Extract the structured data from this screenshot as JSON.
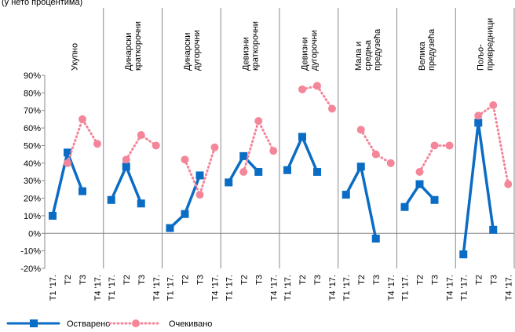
{
  "chart_data": {
    "type": "line",
    "subtitle": "(у нето процентима)",
    "categories": [
      "T1 '17.",
      "T2",
      "T3",
      "T4 '17."
    ],
    "panels": [
      [
        "Укупно"
      ],
      [
        "Динарски",
        "краткорочни"
      ],
      [
        "Динарски",
        "дугорочни"
      ],
      [
        "Девизни",
        "краткорочни"
      ],
      [
        "Девизни",
        "дугорочни"
      ],
      [
        "Мала  и",
        "средња",
        "предузећа"
      ],
      [
        "Велика",
        "предузећа"
      ],
      [
        "Пољо-",
        "привредници"
      ]
    ],
    "series": [
      {
        "name": "Остварено",
        "color": "#0a6cc4",
        "dashed": false,
        "marker": "square",
        "values": [
          [
            10,
            46,
            24,
            null
          ],
          [
            19,
            38,
            17,
            null
          ],
          [
            3,
            11,
            33,
            null
          ],
          [
            29,
            44,
            35,
            null
          ],
          [
            36,
            55,
            35,
            null
          ],
          [
            22,
            38,
            -3,
            null
          ],
          [
            15,
            28,
            19,
            null
          ],
          [
            -12,
            63,
            2,
            null
          ]
        ]
      },
      {
        "name": "Очекивано",
        "color": "#f4869a",
        "dashed": true,
        "marker": "circle",
        "values": [
          [
            null,
            40,
            65,
            51
          ],
          [
            null,
            42,
            56,
            50
          ],
          [
            null,
            42,
            22,
            49
          ],
          [
            null,
            35,
            64,
            47
          ],
          [
            null,
            82,
            84,
            71
          ],
          [
            null,
            59,
            45,
            40
          ],
          [
            null,
            35,
            50,
            50
          ],
          [
            null,
            67,
            73,
            28
          ]
        ]
      }
    ],
    "ylim": [
      -20,
      90
    ],
    "yticks": [
      {
        "value": -20,
        "label": "-20%"
      },
      {
        "value": -10,
        "label": "-10%"
      },
      {
        "value": 0,
        "label": "0%"
      },
      {
        "value": 10,
        "label": "10%"
      },
      {
        "value": 20,
        "label": "20%"
      },
      {
        "value": 30,
        "label": "30%"
      },
      {
        "value": 40,
        "label": "40%"
      },
      {
        "value": 50,
        "label": "50%"
      },
      {
        "value": 60,
        "label": "60%"
      },
      {
        "value": 70,
        "label": "70%"
      },
      {
        "value": 80,
        "label": "80%"
      },
      {
        "value": 90,
        "label": "90%"
      }
    ],
    "grid": false
  }
}
